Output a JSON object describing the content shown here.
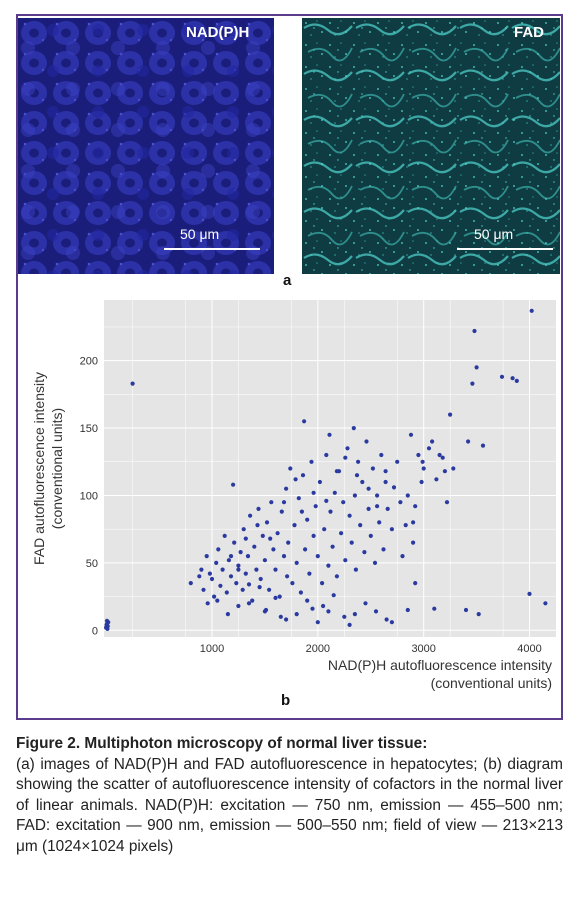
{
  "figure": {
    "panel_a": {
      "left_label": "NAD(P)H",
      "right_label": "FAD",
      "left_scale": "50 μm",
      "right_scale": "50 μm",
      "letter": "a",
      "colors": {
        "nadph_bg": "#1c2083",
        "nadph_cell": "#3438b8",
        "fad_bg": "#0d3a40",
        "fad_bright": "#52d6cf"
      }
    },
    "panel_b_letter": "b",
    "caption_title": "Figure 2. Multiphoton microscopy of normal liver tissue:",
    "caption_body": "(a) images of NAD(P)H and FAD autofluorescence in hepatocytes; (b) diagram showing the scatter of autofluorescence intensity of cofactors in the normal liver of linear animals. NAD(P)H: excitation — 750 nm, emission — 455–500 nm; FAD: excitation — 900 nm, emission — 500–550 nm; field of view — 213×213 μm (1024×1024 pixels)"
  },
  "chart_data": {
    "type": "scatter",
    "xlabel_line1": "NAD(P)H autofluorescence intensity",
    "xlabel_line2": "(conventional units)",
    "ylabel_line1": "FAD autofluorescence intensity",
    "ylabel_line2": "(conventional units)",
    "xlim": [
      -20,
      4250
    ],
    "ylim": [
      -5,
      245
    ],
    "xticks": [
      1000,
      2000,
      3000,
      4000
    ],
    "yticks": [
      0,
      50,
      100,
      150,
      200
    ],
    "grid": true,
    "colors": {
      "point": "#2b3aa0",
      "plot_bg": "#e5e5e5",
      "grid": "#ffffff"
    },
    "points": [
      [
        0,
        2
      ],
      [
        5,
        4
      ],
      [
        10,
        5
      ],
      [
        15,
        3
      ],
      [
        20,
        6
      ],
      [
        8,
        7
      ],
      [
        12,
        1
      ],
      [
        250,
        183
      ],
      [
        800,
        35
      ],
      [
        880,
        40
      ],
      [
        900,
        45
      ],
      [
        920,
        30
      ],
      [
        950,
        55
      ],
      [
        960,
        20
      ],
      [
        980,
        42
      ],
      [
        1000,
        38
      ],
      [
        1020,
        25
      ],
      [
        1040,
        50
      ],
      [
        1060,
        60
      ],
      [
        1080,
        33
      ],
      [
        1100,
        45
      ],
      [
        1120,
        70
      ],
      [
        1140,
        28
      ],
      [
        1160,
        52
      ],
      [
        1180,
        40
      ],
      [
        1200,
        108
      ],
      [
        1210,
        65
      ],
      [
        1230,
        35
      ],
      [
        1250,
        48
      ],
      [
        1270,
        58
      ],
      [
        1290,
        30
      ],
      [
        1300,
        75
      ],
      [
        1320,
        42
      ],
      [
        1340,
        55
      ],
      [
        1360,
        85
      ],
      [
        1380,
        22
      ],
      [
        1400,
        62
      ],
      [
        1420,
        45
      ],
      [
        1440,
        90
      ],
      [
        1460,
        38
      ],
      [
        1480,
        70
      ],
      [
        1500,
        52
      ],
      [
        1510,
        15
      ],
      [
        1520,
        80
      ],
      [
        1540,
        30
      ],
      [
        1560,
        95
      ],
      [
        1580,
        60
      ],
      [
        1600,
        45
      ],
      [
        1620,
        72
      ],
      [
        1640,
        25
      ],
      [
        1660,
        88
      ],
      [
        1680,
        55
      ],
      [
        1700,
        105
      ],
      [
        1710,
        40
      ],
      [
        1720,
        65
      ],
      [
        1740,
        120
      ],
      [
        1760,
        35
      ],
      [
        1780,
        78
      ],
      [
        1800,
        50
      ],
      [
        1820,
        98
      ],
      [
        1840,
        28
      ],
      [
        1860,
        115
      ],
      [
        1870,
        155
      ],
      [
        1880,
        60
      ],
      [
        1900,
        82
      ],
      [
        1920,
        42
      ],
      [
        1940,
        125
      ],
      [
        1960,
        70
      ],
      [
        1980,
        92
      ],
      [
        2000,
        55
      ],
      [
        2020,
        110
      ],
      [
        2040,
        35
      ],
      [
        2060,
        75
      ],
      [
        2080,
        130
      ],
      [
        2100,
        48
      ],
      [
        2110,
        145
      ],
      [
        2120,
        88
      ],
      [
        2140,
        62
      ],
      [
        2160,
        102
      ],
      [
        2180,
        40
      ],
      [
        2200,
        118
      ],
      [
        2220,
        72
      ],
      [
        2240,
        95
      ],
      [
        2260,
        52
      ],
      [
        2280,
        135
      ],
      [
        2300,
        85
      ],
      [
        2320,
        65
      ],
      [
        2340,
        150
      ],
      [
        2350,
        100
      ],
      [
        2360,
        45
      ],
      [
        2380,
        125
      ],
      [
        2400,
        78
      ],
      [
        2420,
        110
      ],
      [
        2440,
        58
      ],
      [
        2460,
        140
      ],
      [
        2480,
        90
      ],
      [
        2500,
        70
      ],
      [
        2520,
        120
      ],
      [
        2540,
        50
      ],
      [
        2560,
        100
      ],
      [
        2580,
        80
      ],
      [
        2600,
        130
      ],
      [
        2620,
        60
      ],
      [
        2640,
        110
      ],
      [
        2660,
        90
      ],
      [
        2700,
        75
      ],
      [
        2750,
        125
      ],
      [
        2800,
        55
      ],
      [
        2850,
        100
      ],
      [
        2880,
        145
      ],
      [
        2900,
        80
      ],
      [
        2920,
        35
      ],
      [
        2950,
        130
      ],
      [
        2980,
        110
      ],
      [
        3000,
        120
      ],
      [
        3050,
        135
      ],
      [
        3100,
        16
      ],
      [
        3150,
        130
      ],
      [
        3200,
        118
      ],
      [
        3220,
        95
      ],
      [
        3250,
        160
      ],
      [
        3280,
        120
      ],
      [
        3400,
        15
      ],
      [
        3420,
        140
      ],
      [
        3460,
        183
      ],
      [
        3480,
        222
      ],
      [
        3500,
        195
      ],
      [
        3520,
        12
      ],
      [
        3560,
        137
      ],
      [
        3740,
        188
      ],
      [
        3840,
        187
      ],
      [
        3880,
        185
      ],
      [
        4020,
        237
      ],
      [
        4000,
        27
      ],
      [
        4150,
        20
      ],
      [
        1050,
        22
      ],
      [
        1250,
        18
      ],
      [
        1500,
        14
      ],
      [
        1650,
        10
      ],
      [
        1800,
        12
      ],
      [
        1950,
        16
      ],
      [
        2100,
        14
      ],
      [
        2250,
        10
      ],
      [
        2350,
        12
      ],
      [
        2450,
        20
      ],
      [
        2550,
        14
      ],
      [
        2650,
        8
      ],
      [
        2850,
        15
      ],
      [
        1150,
        12
      ],
      [
        1350,
        20
      ],
      [
        1700,
        8
      ],
      [
        2000,
        6
      ],
      [
        2300,
        4
      ],
      [
        2700,
        6
      ],
      [
        1900,
        22
      ],
      [
        2150,
        26
      ],
      [
        2050,
        18
      ],
      [
        1600,
        24
      ],
      [
        1450,
        32
      ],
      [
        1350,
        34
      ],
      [
        1250,
        45
      ],
      [
        1180,
        55
      ],
      [
        1320,
        68
      ],
      [
        1430,
        78
      ],
      [
        1550,
        68
      ],
      [
        1680,
        95
      ],
      [
        1790,
        112
      ],
      [
        1850,
        88
      ],
      [
        1960,
        102
      ],
      [
        2080,
        96
      ],
      [
        2180,
        118
      ],
      [
        2260,
        128
      ],
      [
        2370,
        115
      ],
      [
        2480,
        105
      ],
      [
        2560,
        92
      ],
      [
        2640,
        118
      ],
      [
        2720,
        106
      ],
      [
        2780,
        95
      ],
      [
        2830,
        78
      ],
      [
        2920,
        92
      ],
      [
        2990,
        125
      ],
      [
        3080,
        140
      ],
      [
        3120,
        112
      ],
      [
        3180,
        128
      ],
      [
        2900,
        65
      ]
    ]
  }
}
